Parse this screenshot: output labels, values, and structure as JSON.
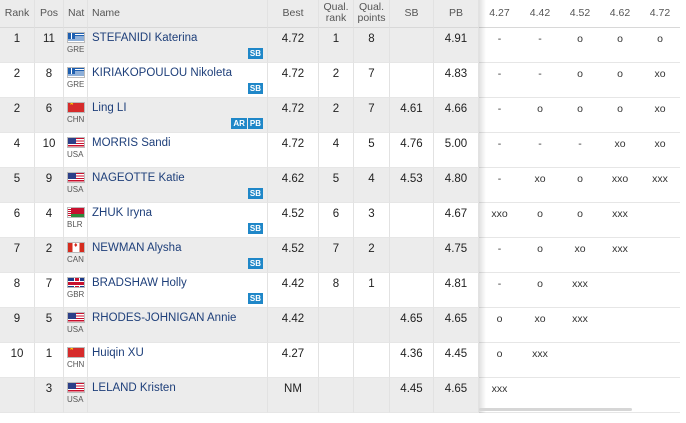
{
  "headers": {
    "rank": "Rank",
    "pos": "Pos",
    "nat": "Nat",
    "name": "Name",
    "best": "Best",
    "qual_rank": [
      "Qual.",
      "rank"
    ],
    "qual_points": [
      "Qual.",
      "points"
    ],
    "sb": "SB",
    "pb": "PB",
    "heights": [
      "4.27",
      "4.42",
      "4.52",
      "4.62",
      "4.72"
    ]
  },
  "athletes": [
    {
      "rank": "1",
      "pos": "11",
      "nat": "GRE",
      "flag": "flag-greece-icon",
      "name": "STEFANIDI Katerina",
      "badges": [
        "SB"
      ],
      "best": "4.72",
      "qual_rank": "1",
      "qual_points": "8",
      "sb": "",
      "pb": "4.91",
      "attempts": [
        "-",
        "-",
        "o",
        "o",
        "o"
      ]
    },
    {
      "rank": "2",
      "pos": "8",
      "nat": "GRE",
      "flag": "flag-greece-icon",
      "name": "KIRIAKOPOULOU Nikoleta",
      "badges": [
        "SB"
      ],
      "best": "4.72",
      "qual_rank": "2",
      "qual_points": "7",
      "sb": "",
      "pb": "4.83",
      "attempts": [
        "-",
        "-",
        "o",
        "o",
        "xo"
      ]
    },
    {
      "rank": "2",
      "pos": "6",
      "nat": "CHN",
      "flag": "flag-china-icon",
      "name": "Ling LI",
      "badges": [
        "AR",
        "PB"
      ],
      "best": "4.72",
      "qual_rank": "2",
      "qual_points": "7",
      "sb": "4.61",
      "pb": "4.66",
      "attempts": [
        "-",
        "o",
        "o",
        "o",
        "xo"
      ]
    },
    {
      "rank": "4",
      "pos": "10",
      "nat": "USA",
      "flag": "flag-usa-icon",
      "name": "MORRIS Sandi",
      "badges": [],
      "best": "4.72",
      "qual_rank": "4",
      "qual_points": "5",
      "sb": "4.76",
      "pb": "5.00",
      "attempts": [
        "-",
        "-",
        "-",
        "xo",
        "xo"
      ]
    },
    {
      "rank": "5",
      "pos": "9",
      "nat": "USA",
      "flag": "flag-usa-icon",
      "name": "NAGEOTTE Katie",
      "badges": [
        "SB"
      ],
      "best": "4.62",
      "qual_rank": "5",
      "qual_points": "4",
      "sb": "4.53",
      "pb": "4.80",
      "attempts": [
        "-",
        "xo",
        "o",
        "xxo",
        "xxx"
      ]
    },
    {
      "rank": "6",
      "pos": "4",
      "nat": "BLR",
      "flag": "flag-belarus-icon",
      "name": "ZHUK Iryna",
      "badges": [
        "SB"
      ],
      "best": "4.52",
      "qual_rank": "6",
      "qual_points": "3",
      "sb": "",
      "pb": "4.67",
      "attempts": [
        "xxo",
        "o",
        "o",
        "xxx",
        ""
      ]
    },
    {
      "rank": "7",
      "pos": "2",
      "nat": "CAN",
      "flag": "flag-canada-icon",
      "name": "NEWMAN Alysha",
      "badges": [
        "SB"
      ],
      "best": "4.52",
      "qual_rank": "7",
      "qual_points": "2",
      "sb": "",
      "pb": "4.75",
      "attempts": [
        "-",
        "o",
        "xo",
        "xxx",
        ""
      ]
    },
    {
      "rank": "8",
      "pos": "7",
      "nat": "GBR",
      "flag": "flag-uk-icon",
      "name": "BRADSHAW Holly",
      "badges": [
        "SB"
      ],
      "best": "4.42",
      "qual_rank": "8",
      "qual_points": "1",
      "sb": "",
      "pb": "4.81",
      "attempts": [
        "-",
        "o",
        "xxx",
        "",
        ""
      ]
    },
    {
      "rank": "9",
      "pos": "5",
      "nat": "USA",
      "flag": "flag-usa-icon",
      "name": "RHODES-JOHNIGAN Annie",
      "badges": [],
      "best": "4.42",
      "qual_rank": "",
      "qual_points": "",
      "sb": "4.65",
      "pb": "4.65",
      "attempts": [
        "o",
        "xo",
        "xxx",
        "",
        ""
      ]
    },
    {
      "rank": "10",
      "pos": "1",
      "nat": "CHN",
      "flag": "flag-china-icon",
      "name": "Huiqin XU",
      "badges": [],
      "best": "4.27",
      "qual_rank": "",
      "qual_points": "",
      "sb": "4.36",
      "pb": "4.45",
      "attempts": [
        "o",
        "xxx",
        "",
        "",
        ""
      ]
    },
    {
      "rank": "",
      "pos": "3",
      "nat": "USA",
      "flag": "flag-usa-icon",
      "name": "LELAND Kristen",
      "badges": [],
      "best": "NM",
      "qual_rank": "",
      "qual_points": "",
      "sb": "4.45",
      "pb": "4.65",
      "attempts": [
        "xxx",
        "",
        "",
        "",
        ""
      ]
    }
  ]
}
